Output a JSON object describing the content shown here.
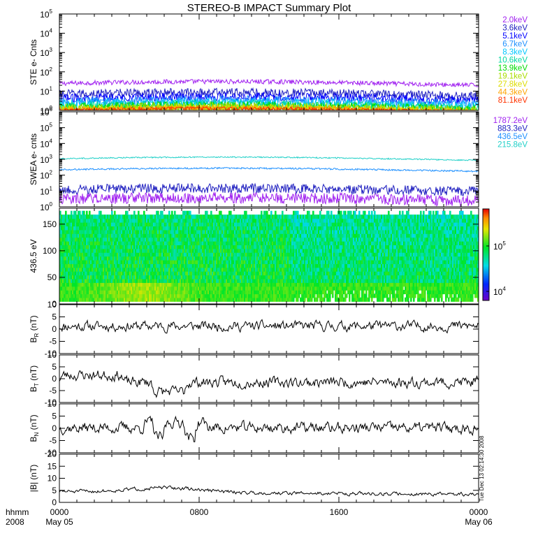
{
  "title": "STEREO-B IMPACT Summary Plot",
  "timestamp": "Tue Dec 13 02:14:30 2008",
  "x_axis": {
    "corner_labels": [
      "hhmm",
      "2008"
    ],
    "ticks": [
      {
        "label": "0000",
        "sublabel": "May 05",
        "hour": 0
      },
      {
        "label": "0800",
        "sublabel": "",
        "hour": 8
      },
      {
        "label": "1600",
        "sublabel": "",
        "hour": 16
      },
      {
        "label": "0000",
        "sublabel": "May 06",
        "hour": 24
      }
    ],
    "range_hours": [
      0,
      24
    ]
  },
  "chart_data": [
    {
      "type": "line",
      "id": "ste",
      "ylabel": "STE e- Cnts",
      "yscale": "log",
      "ylim_exp": [
        0,
        5
      ],
      "tick_exponents": [
        0,
        1,
        2,
        3,
        4,
        5
      ],
      "series": [
        {
          "name": "2.0keV",
          "color": "#a020f0",
          "level": 25,
          "noise": 0.12
        },
        {
          "name": "3.6keV",
          "color": "#2020c0",
          "level": 7,
          "noise": 0.22
        },
        {
          "name": "5.1keV",
          "color": "#0000ff",
          "level": 4.2,
          "noise": 0.22
        },
        {
          "name": "6.7keV",
          "color": "#1e90ff",
          "level": 2.8,
          "noise": 0.22
        },
        {
          "name": "8.3keV",
          "color": "#00c8ff",
          "level": 2.0,
          "noise": 0.25
        },
        {
          "name": "10.6keV",
          "color": "#00d8a0",
          "level": 1.6,
          "noise": 0.25
        },
        {
          "name": "13.9keV",
          "color": "#00dd00",
          "level": 1.35,
          "noise": 0.25
        },
        {
          "name": "19.1keV",
          "color": "#aadd00",
          "level": 1.2,
          "noise": 0.25
        },
        {
          "name": "27.8keV",
          "color": "#dddd00",
          "level": 1.1,
          "noise": 0.2
        },
        {
          "name": "44.3keV",
          "color": "#ffa500",
          "level": 1.05,
          "noise": 0.15
        },
        {
          "name": "81.1keV",
          "color": "#ff3300",
          "level": 1.0,
          "noise": 0.1
        }
      ]
    },
    {
      "type": "line",
      "id": "swea",
      "ylabel": "SWEA e- cnts",
      "yscale": "log",
      "ylim_exp": [
        0,
        6
      ],
      "tick_exponents": [
        0,
        1,
        2,
        3,
        4,
        5,
        6
      ],
      "series": [
        {
          "name": "1787.2eV",
          "color": "#a020f0",
          "level": 3,
          "noise": 0.35
        },
        {
          "name": "883.3eV",
          "color": "#2020c0",
          "level": 12,
          "noise": 0.3
        },
        {
          "name": "436.5eV",
          "color": "#1e90ff",
          "level": 220,
          "noise": 0.05
        },
        {
          "name": "215.8eV",
          "color": "#20d0c8",
          "level": 1100,
          "noise": 0.04
        }
      ]
    },
    {
      "type": "heatmap",
      "id": "pad",
      "ylabel": "436.5 eV",
      "ylim": [
        0,
        180
      ],
      "yticks": [
        0,
        50,
        100,
        150
      ],
      "colorbar": {
        "ticks": [
          {
            "label": "10",
            "exp": "5"
          },
          {
            "label": "10",
            "exp": "4"
          }
        ]
      }
    },
    {
      "type": "line",
      "id": "br",
      "ylabel": "B",
      "ylabel_sub": "R",
      "ylabel_unit": "(nT)",
      "ylim": [
        -10,
        10
      ],
      "yticks": [
        -10,
        -5,
        0,
        5,
        10
      ],
      "series": [
        {
          "name": "",
          "color": "#000000",
          "seed": 11,
          "base": 1.2,
          "amp": 1.6
        }
      ]
    },
    {
      "type": "line",
      "id": "bt",
      "ylabel": "B",
      "ylabel_sub": "T",
      "ylabel_unit": "(nT)",
      "ylim": [
        -10,
        10
      ],
      "yticks": [
        -10,
        -5,
        0,
        5,
        10
      ],
      "series": [
        {
          "name": "",
          "color": "#000000",
          "seed": 23,
          "base": -1.5,
          "amp": 1.8
        }
      ]
    },
    {
      "type": "line",
      "id": "bn",
      "ylabel": "B",
      "ylabel_sub": "N",
      "ylabel_unit": "(nT)",
      "ylim": [
        -10,
        10
      ],
      "yticks": [
        -10,
        -5,
        0,
        5,
        10
      ],
      "series": [
        {
          "name": "",
          "color": "#000000",
          "seed": 37,
          "base": 0.2,
          "amp": 1.8
        }
      ]
    },
    {
      "type": "line",
      "id": "bmag",
      "ylabel": "|B| (nT)",
      "ylim": [
        0,
        20
      ],
      "yticks": [
        0,
        5,
        10,
        15,
        20
      ],
      "series": [
        {
          "name": "",
          "color": "#000000",
          "seed": 51,
          "base": 4.5,
          "amp": 0.6
        }
      ]
    }
  ]
}
